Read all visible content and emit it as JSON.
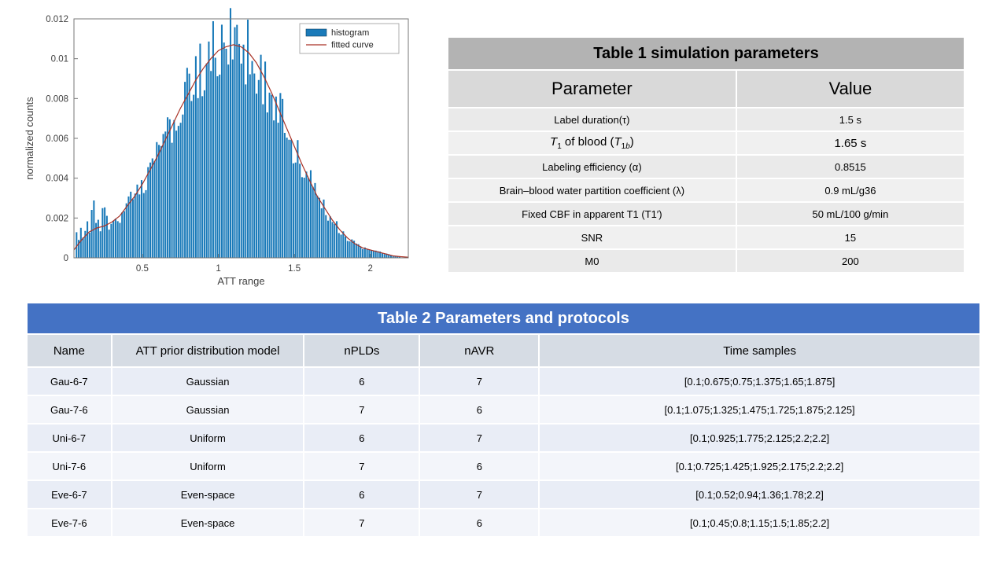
{
  "chart_data": {
    "type": "bar",
    "subtype": "histogram-with-fit",
    "title": "",
    "xlabel": "ATT range",
    "ylabel": "normalized counts",
    "xlim": [
      0.05,
      2.25
    ],
    "ylim": [
      0,
      0.012
    ],
    "xticks": [
      0.5,
      1,
      1.5,
      2
    ],
    "yticks": [
      0,
      0.002,
      0.004,
      0.006,
      0.008,
      0.01,
      0.012
    ],
    "grid": false,
    "legend": [
      "histogram",
      "fitted curve"
    ],
    "legend_position": "top-right",
    "colors": {
      "histogram": "#1a7ab9",
      "curve": "#a93226",
      "axis": "#777777",
      "text": "#404040"
    },
    "n_bins": 150,
    "bins_range": [
      0.06,
      2.2
    ],
    "peak_bar": {
      "x": 1.12,
      "y": 0.0117
    },
    "fitted_curve": {
      "x": [
        0.05,
        0.1,
        0.15,
        0.2,
        0.25,
        0.3,
        0.35,
        0.4,
        0.45,
        0.5,
        0.55,
        0.6,
        0.65,
        0.7,
        0.75,
        0.8,
        0.85,
        0.9,
        0.95,
        1.0,
        1.05,
        1.1,
        1.15,
        1.2,
        1.25,
        1.3,
        1.35,
        1.4,
        1.45,
        1.5,
        1.55,
        1.6,
        1.65,
        1.7,
        1.75,
        1.8,
        1.85,
        1.9,
        1.95,
        2.0,
        2.05,
        2.1,
        2.15,
        2.2,
        2.25
      ],
      "y": [
        0.0004,
        0.0009,
        0.0013,
        0.0015,
        0.0016,
        0.0018,
        0.0021,
        0.0026,
        0.0031,
        0.0037,
        0.0044,
        0.0051,
        0.0059,
        0.0067,
        0.0075,
        0.0082,
        0.0089,
        0.0095,
        0.01,
        0.0104,
        0.0106,
        0.0107,
        0.0106,
        0.0103,
        0.0098,
        0.0091,
        0.0083,
        0.0074,
        0.0065,
        0.0056,
        0.0047,
        0.0039,
        0.0031,
        0.0025,
        0.0019,
        0.0014,
        0.001,
        0.0007,
        0.0005,
        0.0004,
        0.0003,
        0.0002,
        0.0001,
        6e-05,
        3e-05
      ]
    }
  },
  "table1": {
    "title": "Table 1 simulation parameters",
    "columns": [
      "Parameter",
      "Value"
    ],
    "rows": [
      {
        "param": "Label duration(τ)",
        "value": "1.5 s"
      },
      {
        "param_html": "<i>T</i><sub>1</sub> of blood (<i>T</i><sub>1<i>b</i></sub>)",
        "value": "1.65 s"
      },
      {
        "param": "Labeling efficiency (α)",
        "value": "0.8515"
      },
      {
        "param": "Brain–blood water partition coefficient (λ)",
        "value": "0.9 mL/g36"
      },
      {
        "param": "Fixed CBF in apparent T1 (T1′)",
        "value": "50 mL/100 g/min"
      },
      {
        "param": "SNR",
        "value": "15"
      },
      {
        "param": "M0",
        "value": "200"
      }
    ]
  },
  "table2": {
    "title": "Table 2 Parameters and protocols",
    "columns": [
      "Name",
      "ATT prior distribution model",
      "nPLDs",
      "nAVR",
      "Time samples"
    ],
    "rows": [
      [
        "Gau-6-7",
        "Gaussian",
        "6",
        "7",
        "[0.1;0.675;0.75;1.375;1.65;1.875]"
      ],
      [
        "Gau-7-6",
        "Gaussian",
        "7",
        "6",
        "[0.1;1.075;1.325;1.475;1.725;1.875;2.125]"
      ],
      [
        "Uni-6-7",
        "Uniform",
        "6",
        "7",
        "[0.1;0.925;1.775;2.125;2.2;2.2]"
      ],
      [
        "Uni-7-6",
        "Uniform",
        "7",
        "6",
        "[0.1;0.725;1.425;1.925;2.175;2.2;2.2]"
      ],
      [
        "Eve-6-7",
        "Even-space",
        "6",
        "7",
        "[0.1;0.52;0.94;1.36;1.78;2.2]"
      ],
      [
        "Eve-7-6",
        "Even-space",
        "7",
        "6",
        "[0.1;0.45;0.8;1.15;1.5;1.85;2.2]"
      ]
    ]
  }
}
